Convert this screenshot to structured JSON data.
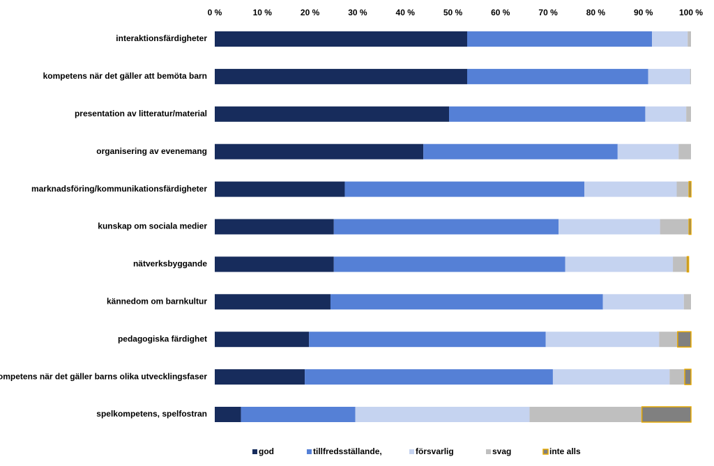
{
  "chart_data": {
    "type": "bar",
    "orientation": "horizontal",
    "stacked": true,
    "percent": true,
    "title": "",
    "xlabel": "",
    "ylabel": "",
    "xlim": [
      0,
      100
    ],
    "xticks": [
      0,
      10,
      20,
      30,
      40,
      50,
      60,
      70,
      80,
      90,
      100
    ],
    "xtick_labels": [
      "0 %",
      "10 %",
      "20 %",
      "30 %",
      "40 %",
      "50 %",
      "60 %",
      "70 %",
      "80 %",
      "90 %",
      "100 %"
    ],
    "grid": false,
    "legend_position": "bottom",
    "categories": [
      "interaktionsfärdigheter",
      "kompetens när det gäller att bemöta barn",
      "presentation av litteratur/material",
      "organisering av evenemang",
      "marknadsföring/kommunikationsfärdigheter",
      "kunskap om sociala medier",
      "nätverksbyggande",
      "kännedom om barnkultur",
      "pedagogiska färdighet",
      "kompetens när det gäller barns olika utvecklingsfaser",
      "spelkompetens, spelfostran"
    ],
    "series": [
      {
        "name": "god",
        "color": "#172c5c",
        "values": [
          53.0,
          53.0,
          49.2,
          43.8,
          27.3,
          25.0,
          25.0,
          24.3,
          19.8,
          18.9,
          5.5
        ]
      },
      {
        "name": "tillfredsställande,",
        "color": "#5580d6",
        "values": [
          38.8,
          38.0,
          41.2,
          40.8,
          50.3,
          47.2,
          48.6,
          57.2,
          49.7,
          52.1,
          24.0
        ]
      },
      {
        "name": "försvarlig",
        "color": "#c5d3f0",
        "values": [
          7.5,
          8.8,
          8.6,
          12.8,
          19.4,
          21.3,
          22.6,
          17.0,
          23.8,
          24.5,
          36.6
        ]
      },
      {
        "name": "svag",
        "color": "#bfbfbf",
        "values": [
          0.7,
          0.2,
          1.0,
          2.6,
          2.6,
          6.1,
          3.0,
          1.5,
          3.9,
          3.2,
          23.6
        ]
      },
      {
        "name": "inte alls",
        "color": "#808080",
        "border": "#e6a800",
        "values": [
          0.0,
          0.0,
          0.0,
          0.0,
          0.4,
          0.4,
          0.3,
          0.0,
          2.8,
          1.3,
          10.3
        ]
      }
    ]
  }
}
